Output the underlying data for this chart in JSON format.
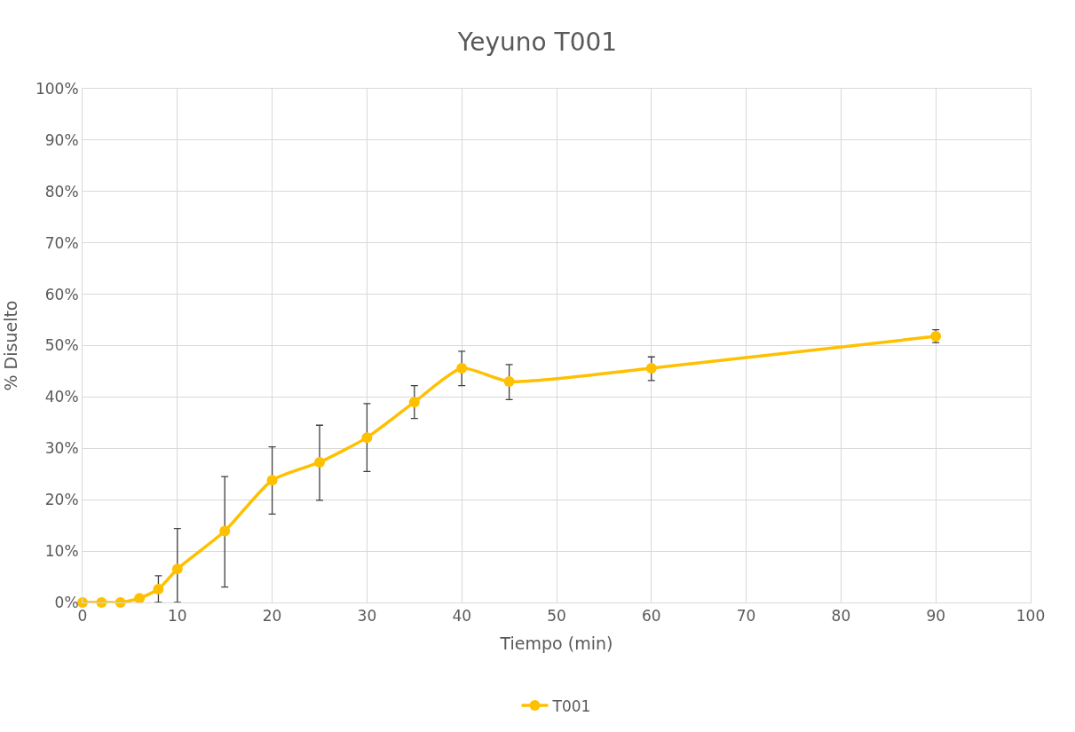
{
  "chart_data": {
    "type": "line",
    "title": "Yeyuno T001",
    "xlabel": "Tiempo (min)",
    "ylabel": "% Disuelto",
    "xlim": [
      0,
      100
    ],
    "xticks": [
      0,
      10,
      20,
      30,
      40,
      50,
      60,
      70,
      80,
      90,
      100
    ],
    "ylim": [
      0,
      100
    ],
    "yticks": [
      {
        "value": 0,
        "label": "0%"
      },
      {
        "value": 10,
        "label": "10%"
      },
      {
        "value": 20,
        "label": "20%"
      },
      {
        "value": 30,
        "label": "30%"
      },
      {
        "value": 40,
        "label": "40%"
      },
      {
        "value": 50,
        "label": "50%"
      },
      {
        "value": 60,
        "label": "60%"
      },
      {
        "value": 70,
        "label": "70%"
      },
      {
        "value": 80,
        "label": "80%"
      },
      {
        "value": 90,
        "label": "90%"
      },
      {
        "value": 100,
        "label": "100%"
      }
    ],
    "grid": true,
    "legend": "bottom",
    "marker": "circle",
    "line_style": "solid",
    "x": [
      0,
      2,
      4,
      6,
      8,
      10,
      15,
      20,
      25,
      30,
      35,
      40,
      45,
      60,
      90
    ],
    "series": [
      {
        "name": "T001",
        "color": "#ffc000",
        "values": [
          0,
          0,
          0,
          0.8,
          2.6,
          6.5,
          13.9,
          23.8,
          27.3,
          32.1,
          39.0,
          45.6,
          43.0,
          45.6,
          51.8
        ],
        "errors": [
          null,
          null,
          null,
          null,
          [
            0,
            5.2
          ],
          [
            0,
            14.4
          ],
          [
            3.0,
            24.5
          ],
          [
            17.2,
            30.3
          ],
          [
            19.9,
            34.5
          ],
          [
            25.5,
            38.7
          ],
          [
            35.8,
            42.2
          ],
          [
            42.2,
            48.9
          ],
          [
            39.5,
            46.3
          ],
          [
            43.2,
            47.8
          ],
          [
            50.6,
            53.1
          ]
        ]
      }
    ]
  }
}
